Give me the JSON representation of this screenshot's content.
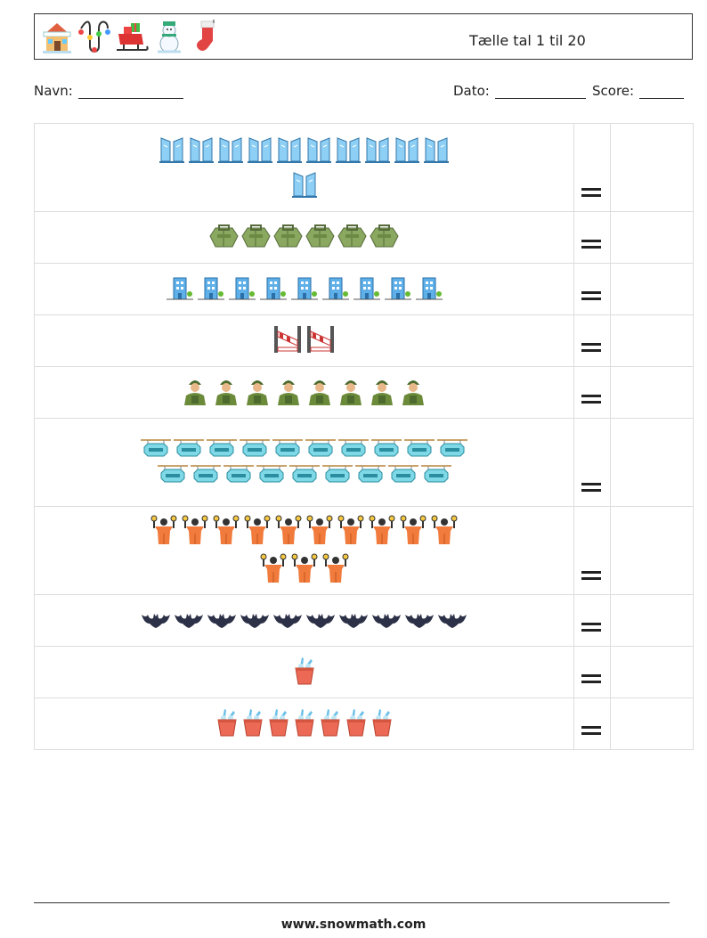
{
  "header": {
    "title": "Tælle tal 1 til 20",
    "icons": [
      "house-icon",
      "lights-icon",
      "sleigh-icon",
      "snowman-icon",
      "stocking-icon"
    ]
  },
  "info": {
    "name_label": "Navn:",
    "date_label": "Dato:",
    "score_label": "Score:"
  },
  "rows": [
    {
      "item": "glass-building-icon",
      "count": 11
    },
    {
      "item": "backpack-icon",
      "count": 6
    },
    {
      "item": "city-building-icon",
      "count": 9
    },
    {
      "item": "road-barrier-icon",
      "count": 2
    },
    {
      "item": "soldier-icon",
      "count": 8
    },
    {
      "item": "hotel-sign-icon",
      "count": 19
    },
    {
      "item": "traffic-controller-icon",
      "count": 13
    },
    {
      "item": "bat-icon",
      "count": 10
    },
    {
      "item": "ice-bucket-icon",
      "count": 1
    },
    {
      "item": "ice-bucket-icon",
      "count": 7
    }
  ],
  "equals_sign": "=",
  "footer": {
    "url": "www.snowmath.com"
  },
  "colors": {
    "border": "#333333",
    "grid": "#dddddd"
  }
}
